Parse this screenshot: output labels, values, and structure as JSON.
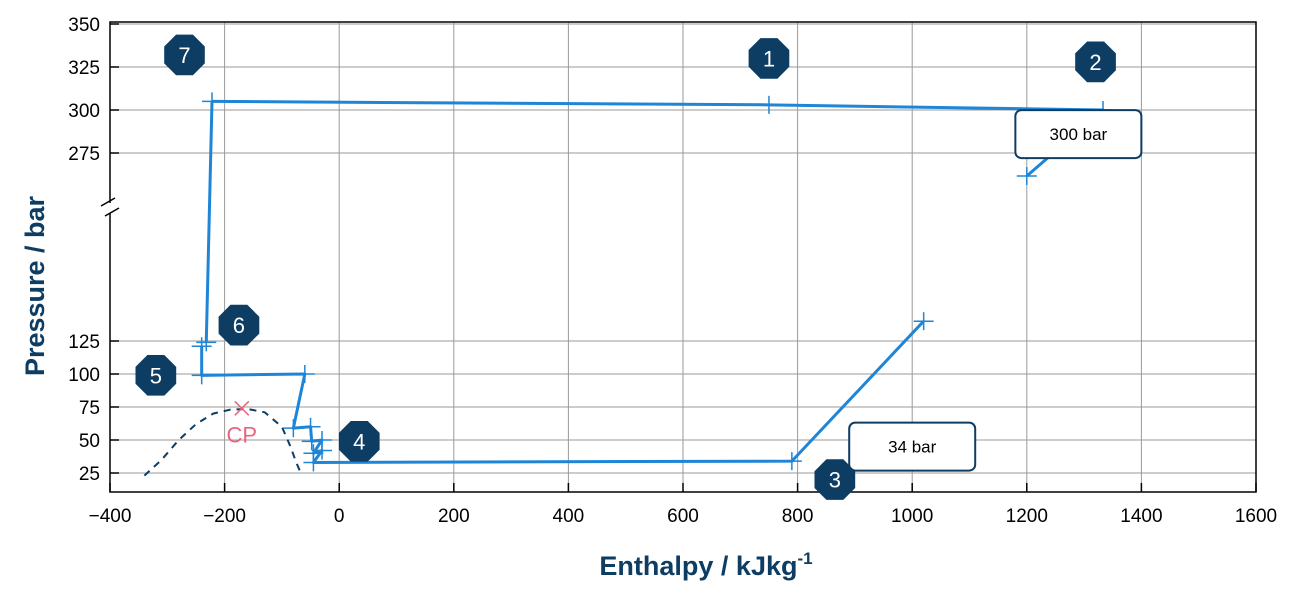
{
  "chart_data": {
    "type": "line",
    "xlabel": "Enthalpy / kJkg",
    "xlabel_sup": "-1",
    "ylabel": "Pressure / bar",
    "xlim": [
      -400,
      1600
    ],
    "ylim": [
      20,
      350
    ],
    "y_axis_break": [
      140,
      260
    ],
    "x_ticks": [
      "−400",
      "−200",
      "0",
      "200",
      "400",
      "600",
      "800",
      "1000",
      "1200",
      "1400",
      "1600"
    ],
    "y_ticks": [
      "25",
      "50",
      "75",
      "100",
      "125",
      "275",
      "300",
      "325",
      "350"
    ],
    "grid": true,
    "colors": {
      "cycle": "#1f85d6",
      "dome": "#0e3d64",
      "cp": "#e8657e",
      "marker": "#0e3d64"
    },
    "series": [
      {
        "name": "",
        "points": [
          [
            -222,
            305
          ],
          [
            750,
            303
          ],
          [
            1333,
            300
          ],
          [
            1200,
            250
          ],
          [
            1020,
            140
          ],
          [
            790,
            34
          ],
          [
            -45,
            33
          ],
          [
            -30,
            42
          ],
          [
            -45,
            40
          ],
          [
            -30,
            50
          ],
          [
            -48,
            49
          ],
          [
            -50,
            60
          ],
          [
            -80,
            59
          ],
          [
            -60,
            100
          ],
          [
            -240,
            99
          ],
          [
            -240,
            121
          ],
          [
            -232,
            124
          ],
          [
            -222,
            305
          ]
        ],
        "gaps": [
          [
            3,
            4
          ],
          [
            15,
            16
          ]
        ]
      }
    ],
    "saturation_dome": [
      [
        -340,
        23
      ],
      [
        -310,
        35
      ],
      [
        -280,
        50
      ],
      [
        -250,
        62
      ],
      [
        -220,
        70
      ],
      [
        -190,
        73
      ],
      [
        -160,
        73.5
      ],
      [
        -130,
        71
      ],
      [
        -100,
        60
      ],
      [
        -85,
        45
      ],
      [
        -75,
        33
      ],
      [
        -68,
        26
      ]
    ],
    "critical_point": {
      "label": "CP",
      "h": -170,
      "p": 74
    },
    "state_markers": [
      {
        "label": "1",
        "h": 750,
        "p": 330
      },
      {
        "label": "2",
        "h": 1320,
        "p": 328
      },
      {
        "label": "3",
        "h": 865,
        "p": 20
      },
      {
        "label": "4",
        "h": 35,
        "p": 49
      },
      {
        "label": "5",
        "h": -320,
        "p": 99
      },
      {
        "label": "6",
        "h": -175,
        "p": 137
      },
      {
        "label": "7",
        "h": -270,
        "p": 332
      }
    ],
    "pressure_boxes": [
      {
        "label": "300 bar",
        "h": 1290,
        "p": 286
      },
      {
        "label": "34 bar",
        "h": 1000,
        "p": 45
      }
    ]
  }
}
